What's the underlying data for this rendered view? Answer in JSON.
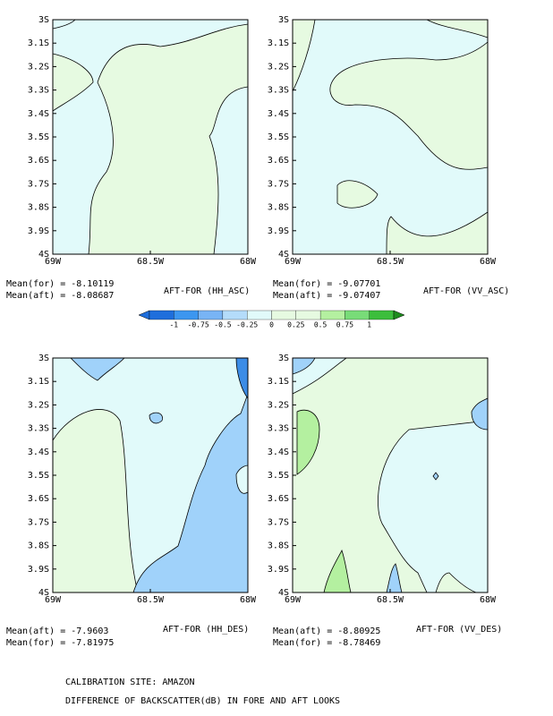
{
  "panels": [
    {
      "title": "AFT-FOR (HH_ASC)",
      "means": [
        "Mean(for) = -8.10119",
        "Mean(aft) = -8.08687"
      ],
      "xticks": [
        "69W",
        "68.5W",
        "68W"
      ],
      "yticks": [
        "3S",
        "3.1S",
        "3.2S",
        "3.3S",
        "3.4S",
        "3.5S",
        "3.6S",
        "3.7S",
        "3.8S",
        "3.9S",
        "4S"
      ]
    },
    {
      "title": "AFT-FOR (VV_ASC)",
      "means": [
        "Mean(for) = -9.07701",
        "Mean(aft) = -9.07407"
      ],
      "xticks": [
        "69W",
        "68.5W",
        "68W"
      ],
      "yticks": [
        "3S",
        "3.1S",
        "3.2S",
        "3.3S",
        "3.4S",
        "3.5S",
        "3.6S",
        "3.7S",
        "3.8S",
        "3.9S",
        "4S"
      ]
    },
    {
      "title": "AFT-FOR (HH_DES)",
      "means": [
        "Mean(aft) = -7.9603",
        "Mean(for) = -7.81975"
      ],
      "xticks": [
        "69W",
        "68.5W",
        "68W"
      ],
      "yticks": [
        "3S",
        "3.1S",
        "3.2S",
        "3.3S",
        "3.4S",
        "3.5S",
        "3.6S",
        "3.7S",
        "3.8S",
        "3.9S",
        "4S"
      ]
    },
    {
      "title": "AFT-FOR (VV_DES)",
      "means": [
        "Mean(aft) = -8.80925",
        "Mean(for) = -8.78469"
      ],
      "xticks": [
        "69W",
        "68.5W",
        "68W"
      ],
      "yticks": [
        "3S",
        "3.1S",
        "3.2S",
        "3.3S",
        "3.4S",
        "3.5S",
        "3.6S",
        "3.7S",
        "3.8S",
        "3.9S",
        "4S"
      ]
    }
  ],
  "colorbar": {
    "labels": [
      "-1",
      "-0.75",
      "-0.5",
      "-0.25",
      "0",
      "0.25",
      "0.5",
      "0.75",
      "1"
    ]
  },
  "footer": [
    "CALIBRATION SITE: AMAZON",
    "DIFFERENCE OF BACKSCATTER(dB) IN FORE AND AFT LOOKS"
  ]
}
